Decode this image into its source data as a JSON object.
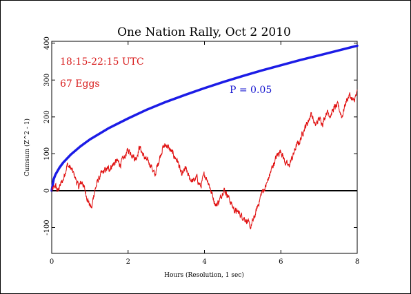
{
  "chart_data": {
    "type": "line",
    "title": "One Nation Rally, Oct 2 2010",
    "xlabel": "Hours (Resolution, 1 sec)",
    "ylabel": "Cumsum (Z^2 - 1)",
    "xlim": [
      0,
      8
    ],
    "ylim": [
      -170,
      405
    ],
    "x_ticks": [
      0,
      2,
      4,
      6,
      8
    ],
    "y_ticks": [
      -100,
      0,
      100,
      200,
      300,
      400
    ],
    "grid": false,
    "annotations": [
      {
        "text": "18:15-22:15 UTC",
        "color": "#d81c1c"
      },
      {
        "text": "67 Eggs",
        "color": "#d81c1c"
      },
      {
        "text": "P = 0.05",
        "color": "#1818d0"
      }
    ],
    "series": [
      {
        "role": "probability-envelope",
        "color": "#1c1ce6",
        "x": [
          0,
          0.05,
          0.1,
          0.2,
          0.3,
          0.5,
          0.75,
          1,
          1.5,
          2,
          2.5,
          3,
          3.5,
          4,
          4.5,
          5,
          5.5,
          6,
          6.5,
          7,
          7.5,
          8
        ],
        "values": [
          0,
          31,
          44,
          62,
          76,
          98,
          120,
          139,
          170,
          196,
          220,
          241,
          260,
          278,
          295,
          311,
          326,
          340,
          354,
          367,
          380,
          393
        ]
      },
      {
        "role": "cumulative-deviation",
        "color": "#e01010",
        "x": [
          0,
          0.05,
          0.1,
          0.15,
          0.2,
          0.3,
          0.4,
          0.5,
          0.6,
          0.7,
          0.8,
          0.9,
          1.0,
          1.05,
          1.1,
          1.2,
          1.3,
          1.4,
          1.5,
          1.6,
          1.7,
          1.8,
          1.9,
          2.0,
          2.1,
          2.2,
          2.3,
          2.4,
          2.5,
          2.6,
          2.7,
          2.8,
          2.9,
          3.0,
          3.1,
          3.2,
          3.3,
          3.4,
          3.5,
          3.6,
          3.7,
          3.8,
          3.9,
          4.0,
          4.1,
          4.2,
          4.3,
          4.4,
          4.5,
          4.6,
          4.7,
          4.8,
          4.9,
          5.0,
          5.1,
          5.2,
          5.3,
          5.4,
          5.5,
          5.6,
          5.7,
          5.8,
          5.9,
          6.0,
          6.1,
          6.2,
          6.3,
          6.4,
          6.5,
          6.6,
          6.7,
          6.8,
          6.9,
          7.0,
          7.1,
          7.2,
          7.3,
          7.4,
          7.5,
          7.6,
          7.7,
          7.8,
          7.9,
          8.0
        ],
        "values": [
          0,
          5,
          14,
          -2,
          10,
          30,
          70,
          60,
          40,
          10,
          25,
          -10,
          -40,
          -48,
          -10,
          25,
          45,
          55,
          60,
          70,
          80,
          72,
          90,
          110,
          100,
          85,
          120,
          95,
          80,
          70,
          40,
          80,
          115,
          125,
          110,
          95,
          80,
          40,
          60,
          35,
          25,
          35,
          10,
          45,
          25,
          -10,
          -40,
          -25,
          5,
          -10,
          -35,
          -55,
          -60,
          -70,
          -80,
          -100,
          -75,
          -40,
          -5,
          10,
          40,
          70,
          95,
          110,
          80,
          65,
          90,
          120,
          135,
          165,
          185,
          210,
          175,
          195,
          185,
          215,
          205,
          225,
          230,
          200,
          240,
          260,
          240,
          265
        ]
      }
    ]
  }
}
